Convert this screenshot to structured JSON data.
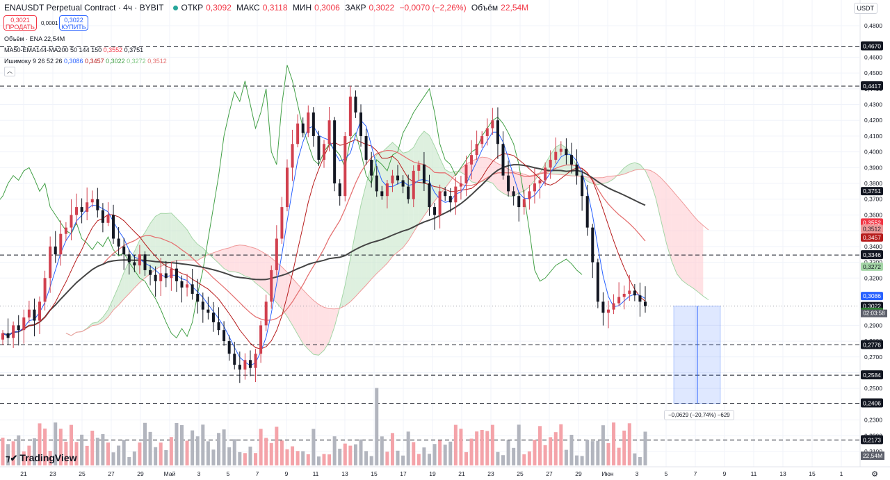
{
  "legend": {
    "symbol": "ENAUSDT Perpetual Contract · 4ч · BYBIT",
    "open_key": "ОТКР",
    "open_val": "0,3092",
    "high_key": "МАКС",
    "high_val": "0,3118",
    "low_key": "МИН",
    "low_val": "0,3006",
    "close_key": "ЗАКР",
    "close_val": "0,3022",
    "change": "−0,0070 (−2,26%)",
    "volume_key": "Объём",
    "volume_val": "22,54M"
  },
  "trade": {
    "sell_price": "0,3021",
    "sell_label": "ПРОДАТЬ",
    "spread": "0,0001",
    "buy_price": "0,3022",
    "buy_label": "КУПИТЬ"
  },
  "indicators": {
    "volume": "Объём · ENA   22,54M",
    "ma_label": "MA50-EMA144-MA200 50 144 150",
    "ma_v1": "0,3552",
    "ma_v2": "0,3751",
    "ichimoku_label": "Ишимоку 9 26 52 26",
    "ich_v1": "0,3086",
    "ich_v2": "0,3457",
    "ich_v3": "0,3022",
    "ich_v4": "0,3272",
    "ich_v5": "0,3512"
  },
  "currency": "USDT",
  "logo": "TradingView",
  "collapse_icon": "chevron-up-icon",
  "measure": "−0,0629 (−20,74%) −629",
  "colors": {
    "up": "#d1404e",
    "down": "#131722",
    "tenkan": "#2962ff",
    "kijun": "#b71c1c",
    "chikou": "#43a047",
    "ma": "#e57373",
    "ma200": "#444444",
    "cloud_bull": "#c8e6c9",
    "cloud_bear": "#ffcdd2"
  },
  "chart_data": {
    "type": "candlestick",
    "y_axis_ticks": [
      "0,4800",
      "0,4600",
      "0,4500",
      "0,4400",
      "0,4300",
      "0,4200",
      "0,4100",
      "0,4000",
      "0,3900",
      "0,3800",
      "0,3700",
      "0,3600",
      "0,3500",
      "0,3400",
      "0,3300",
      "0,3200",
      "0,2900",
      "0,2800",
      "0,2700",
      "0,2600",
      "0,2500",
      "0,2300",
      "0,2200",
      "0,2100"
    ],
    "y_tick_values": [
      0.48,
      0.46,
      0.45,
      0.44,
      0.43,
      0.42,
      0.41,
      0.4,
      0.39,
      0.38,
      0.37,
      0.36,
      0.35,
      0.34,
      0.33,
      0.32,
      0.29,
      0.28,
      0.27,
      0.26,
      0.25,
      0.23,
      0.22,
      0.21
    ],
    "x_axis_ticks": [
      "21",
      "23",
      "25",
      "27",
      "29",
      "Май",
      "3",
      "5",
      "7",
      "9",
      "11",
      "13",
      "15",
      "17",
      "19",
      "21",
      "23",
      "25",
      "27",
      "29",
      "Июн",
      "3",
      "5",
      "7",
      "9",
      "11",
      "13",
      "15",
      "1"
    ],
    "horizontal_levels": [
      {
        "value": 0.467,
        "label": "0,4670"
      },
      {
        "value": 0.4417,
        "label": "0,4417"
      },
      {
        "value": 0.3346,
        "label": "0,3346"
      },
      {
        "value": 0.2776,
        "label": "0,2776"
      },
      {
        "value": 0.2584,
        "label": "0,2584"
      },
      {
        "value": 0.2406,
        "label": "0,2406"
      },
      {
        "value": 0.2173,
        "label": "0,2173"
      }
    ],
    "price_tags": [
      {
        "value": 0.3751,
        "label": "0,3751",
        "bg": "#131722",
        "fg": "#ffffff"
      },
      {
        "value": 0.3552,
        "label": "0,3552",
        "bg": "#f23645",
        "fg": "#ffffff"
      },
      {
        "value": 0.3512,
        "label": "0,3512",
        "bg": "#ef9a9a",
        "fg": "#131722"
      },
      {
        "value": 0.3457,
        "label": "0,3457",
        "bg": "#b71c1c",
        "fg": "#ffffff"
      },
      {
        "value": 0.3272,
        "label": "0,3272",
        "bg": "#a5d6a7",
        "fg": "#131722"
      },
      {
        "value": 0.3086,
        "label": "0,3086",
        "bg": "#2962ff",
        "fg": "#ffffff"
      },
      {
        "value": 0.3022,
        "label": "0,3022",
        "bg": "#131722",
        "fg": "#ffffff"
      },
      {
        "value": 0.2986,
        "label": "0,3022",
        "bg": "#2e7d32",
        "fg": "#ffffff"
      }
    ],
    "countdown": "02:03:58",
    "volume_tag": "22,54M",
    "closes": [
      0.285,
      0.282,
      0.29,
      0.287,
      0.295,
      0.3,
      0.293,
      0.305,
      0.32,
      0.34,
      0.335,
      0.348,
      0.352,
      0.36,
      0.365,
      0.362,
      0.368,
      0.37,
      0.363,
      0.355,
      0.36,
      0.345,
      0.34,
      0.335,
      0.33,
      0.328,
      0.335,
      0.325,
      0.322,
      0.318,
      0.323,
      0.32,
      0.326,
      0.318,
      0.314,
      0.316,
      0.31,
      0.305,
      0.3,
      0.298,
      0.292,
      0.287,
      0.28,
      0.272,
      0.265,
      0.262,
      0.268,
      0.263,
      0.272,
      0.29,
      0.305,
      0.325,
      0.345,
      0.365,
      0.39,
      0.405,
      0.418,
      0.412,
      0.425,
      0.41,
      0.395,
      0.405,
      0.42,
      0.38,
      0.372,
      0.41,
      0.435,
      0.425,
      0.41,
      0.395,
      0.385,
      0.375,
      0.372,
      0.38,
      0.385,
      0.382,
      0.378,
      0.37,
      0.388,
      0.392,
      0.38,
      0.365,
      0.36,
      0.375,
      0.372,
      0.368,
      0.378,
      0.38,
      0.392,
      0.398,
      0.405,
      0.41,
      0.415,
      0.42,
      0.405,
      0.385,
      0.375,
      0.372,
      0.365,
      0.37,
      0.375,
      0.38,
      0.382,
      0.39,
      0.395,
      0.4,
      0.402,
      0.398,
      0.392,
      0.385,
      0.372,
      0.352,
      0.33,
      0.305,
      0.298,
      0.3,
      0.304,
      0.308,
      0.31,
      0.312,
      0.309,
      0.305,
      0.3022
    ]
  }
}
